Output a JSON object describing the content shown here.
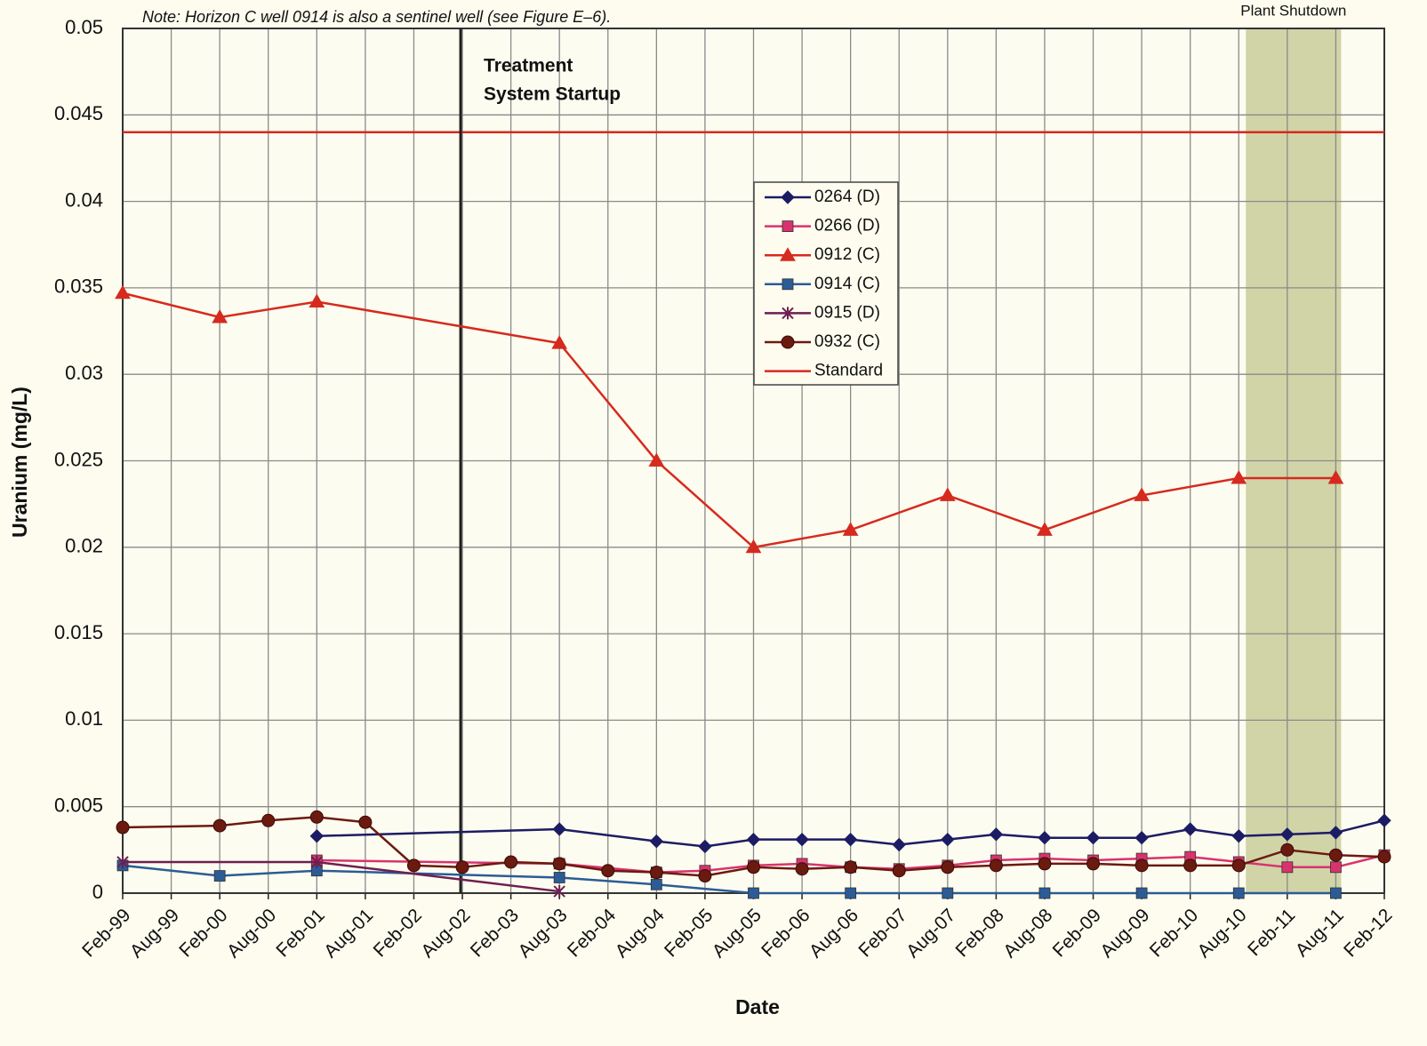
{
  "chart_data": {
    "type": "line",
    "note": "Note: Horizon C well 0914 is also a sentinel well (see Figure E–6).",
    "x_label": "Date",
    "y_label": "Uranium (mg/L)",
    "categories": [
      "Feb-99",
      "Aug-99",
      "Feb-00",
      "Aug-00",
      "Feb-01",
      "Aug-01",
      "Feb-02",
      "Aug-02",
      "Feb-03",
      "Aug-03",
      "Feb-04",
      "Aug-04",
      "Feb-05",
      "Aug-05",
      "Feb-06",
      "Aug-06",
      "Feb-07",
      "Aug-07",
      "Feb-08",
      "Aug-08",
      "Feb-09",
      "Aug-09",
      "Feb-10",
      "Aug-10",
      "Feb-11",
      "Aug-11",
      "Feb-12"
    ],
    "ylim": [
      0,
      0.05
    ],
    "yticks": [
      0,
      0.005,
      0.01,
      0.015,
      0.02,
      0.025,
      0.03,
      0.035,
      0.04,
      0.045,
      0.05
    ],
    "grid": true,
    "series": [
      {
        "name": "0264 (D)",
        "color": "#1c1c64",
        "marker": "diamond",
        "x": [
          "Feb-01",
          "Aug-03",
          "Aug-04",
          "Feb-05",
          "Aug-05",
          "Feb-06",
          "Aug-06",
          "Feb-07",
          "Aug-07",
          "Feb-08",
          "Aug-08",
          "Feb-09",
          "Aug-09",
          "Feb-10",
          "Aug-10",
          "Feb-11",
          "Aug-11",
          "Feb-12"
        ],
        "values": [
          0.0033,
          0.0037,
          0.003,
          0.0027,
          0.0031,
          0.0031,
          0.0031,
          0.0028,
          0.0031,
          0.0034,
          0.0032,
          0.0032,
          0.0032,
          0.0037,
          0.0033,
          0.0034,
          0.0035,
          0.0042
        ]
      },
      {
        "name": "0266 (D)",
        "color": "#d8336e",
        "marker": "square",
        "x": [
          "Feb-01",
          "Aug-03",
          "Aug-04",
          "Feb-05",
          "Aug-05",
          "Feb-06",
          "Aug-06",
          "Feb-07",
          "Aug-07",
          "Feb-08",
          "Aug-08",
          "Feb-09",
          "Aug-09",
          "Feb-10",
          "Aug-10",
          "Feb-11",
          "Aug-11",
          "Feb-12"
        ],
        "values": [
          0.0019,
          0.0017,
          0.0012,
          0.0013,
          0.0016,
          0.0017,
          0.0015,
          0.0014,
          0.0016,
          0.0019,
          0.002,
          0.0019,
          0.002,
          0.0021,
          0.0018,
          0.0015,
          0.0015,
          0.0022
        ]
      },
      {
        "name": "0912 (C)",
        "color": "#d62a1e",
        "marker": "triangle",
        "x": [
          "Feb-99",
          "Feb-00",
          "Feb-01",
          "Aug-03",
          "Aug-04",
          "Aug-05",
          "Aug-06",
          "Aug-07",
          "Aug-08",
          "Aug-09",
          "Aug-10",
          "Aug-11"
        ],
        "values": [
          0.0347,
          0.0333,
          0.0342,
          0.0318,
          0.025,
          0.02,
          0.021,
          0.023,
          0.021,
          0.023,
          0.024,
          0.024
        ]
      },
      {
        "name": "0914 (C)",
        "color": "#2b5c96",
        "marker": "square",
        "x": [
          "Feb-99",
          "Feb-00",
          "Feb-01",
          "Aug-03",
          "Aug-04",
          "Aug-05",
          "Aug-06",
          "Aug-07",
          "Aug-08",
          "Aug-09",
          "Aug-10",
          "Aug-11"
        ],
        "values": [
          0.0016,
          0.001,
          0.0013,
          0.0009,
          0.0005,
          0,
          0,
          0,
          0,
          0,
          0,
          0
        ]
      },
      {
        "name": "0915 (D)",
        "color": "#6e1f50",
        "marker": "star",
        "x": [
          "Feb-99",
          "Feb-01",
          "Aug-03"
        ],
        "values": [
          0.0018,
          0.0018,
          0.0001
        ]
      },
      {
        "name": "0932 (C)",
        "color": "#6b1a10",
        "marker": "circle",
        "x": [
          "Feb-99",
          "Feb-00",
          "Aug-00",
          "Feb-01",
          "Aug-01",
          "Feb-02",
          "Aug-02",
          "Feb-03",
          "Aug-03",
          "Feb-04",
          "Aug-04",
          "Feb-05",
          "Aug-05",
          "Feb-06",
          "Aug-06",
          "Feb-07",
          "Aug-07",
          "Feb-08",
          "Aug-08",
          "Feb-09",
          "Aug-09",
          "Feb-10",
          "Aug-10",
          "Feb-11",
          "Aug-11",
          "Feb-12"
        ],
        "values": [
          0.0038,
          0.0039,
          0.0042,
          0.0044,
          0.0041,
          0.0016,
          0.0015,
          0.0018,
          0.0017,
          0.0013,
          0.0012,
          0.001,
          0.0015,
          0.0014,
          0.0015,
          0.0013,
          0.0015,
          0.0016,
          0.0017,
          0.0017,
          0.0016,
          0.0016,
          0.0016,
          0.0025,
          0.0022,
          0.0021
        ]
      }
    ],
    "reference_line": {
      "name": "Standard",
      "value": 0.044,
      "color": "#d62a1e"
    },
    "startup": {
      "at": "Aug-02",
      "label_lines": [
        "Treatment",
        "System Startup"
      ]
    },
    "shutdown": {
      "label": "Plant Shutdown",
      "from": "Aug-10",
      "to": "Aug-11",
      "color": "#c8cc9a"
    }
  }
}
